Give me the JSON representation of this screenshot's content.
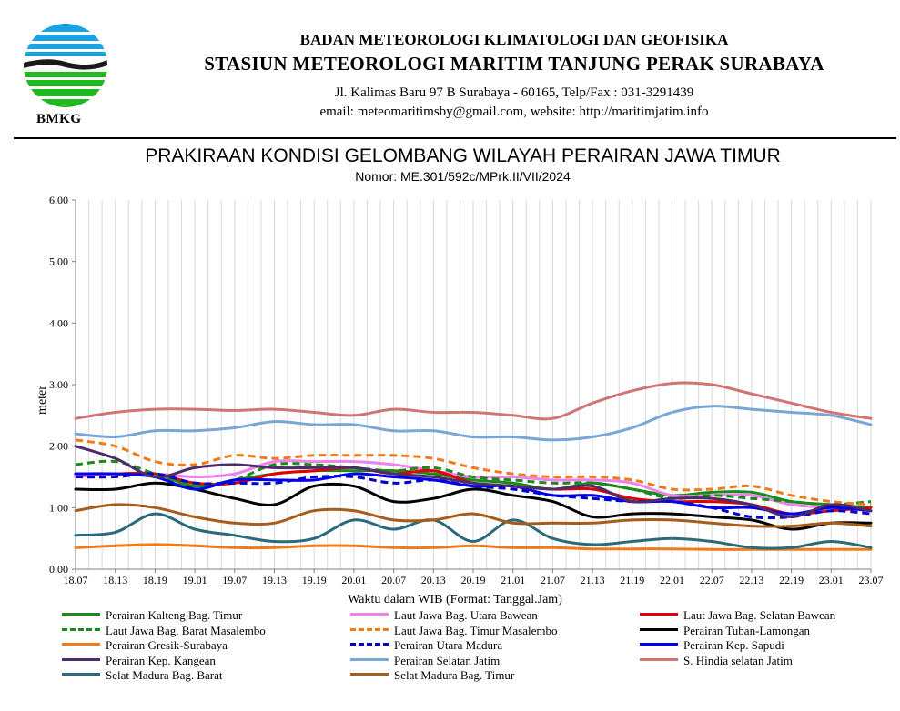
{
  "header": {
    "logo_text": "BMKG",
    "org_line1": "BADAN METEOROLOGI KLIMATOLOGI DAN GEOFISIKA",
    "org_line2": "STASIUN METEOROLOGI MARITIM TANJUNG PERAK SURABAYA",
    "address": "Jl. Kalimas Baru 97 B Surabaya - 60165, Telp/Fax : 031-3291439",
    "contact": "email: meteomaritimsby@gmail.com, website: http://maritimjatim.info"
  },
  "chart_data": {
    "type": "line",
    "title": "PRAKIRAAN KONDISI GELOMBANG WILAYAH PERAIRAN JAWA TIMUR",
    "subtitle": "Nomor: ME.301/592c/MPrk.II/VII/2024",
    "xlabel": "Waktu dalam WIB (Format: Tanggal.Jam)",
    "ylabel": "meter",
    "ylim": [
      0,
      6
    ],
    "yticks": [
      "0.00",
      "1.00",
      "2.00",
      "3.00",
      "4.00",
      "5.00",
      "6.00"
    ],
    "grid": "vertical",
    "legend_position": "bottom",
    "categories": [
      "18.07",
      "18.13",
      "18.19",
      "19.01",
      "19.07",
      "19.13",
      "19.19",
      "20.01",
      "20.07",
      "20.13",
      "20.19",
      "21.01",
      "21.07",
      "21.13",
      "21.19",
      "22.01",
      "22.07",
      "22.13",
      "22.19",
      "23.01",
      "23.07"
    ],
    "series": [
      {
        "name": "Perairan Kalteng Bag. Timur",
        "color": "#1a8a1a",
        "dash": false,
        "values": [
          1.55,
          1.55,
          1.55,
          1.35,
          1.45,
          1.55,
          1.6,
          1.6,
          1.6,
          1.55,
          1.45,
          1.4,
          1.3,
          1.4,
          1.3,
          1.2,
          1.25,
          1.25,
          1.1,
          1.05,
          1.0
        ]
      },
      {
        "name": "Laut Jawa Bag. Utara Bawean",
        "color": "#ee82ee",
        "dash": false,
        "values": [
          1.5,
          1.55,
          1.55,
          1.5,
          1.55,
          1.75,
          1.75,
          1.75,
          1.7,
          1.6,
          1.5,
          1.5,
          1.45,
          1.45,
          1.4,
          1.2,
          1.2,
          1.2,
          1.05,
          1.0,
          0.95
        ]
      },
      {
        "name": "Laut Jawa Bag. Selatan Bawean",
        "color": "#e00000",
        "dash": false,
        "values": [
          1.55,
          1.55,
          1.55,
          1.4,
          1.4,
          1.55,
          1.6,
          1.65,
          1.55,
          1.6,
          1.4,
          1.35,
          1.3,
          1.3,
          1.15,
          1.1,
          1.1,
          1.05,
          0.9,
          0.95,
          1.0
        ]
      },
      {
        "name": "Laut Jawa Bag. Barat Masalembo",
        "color": "#1a8a1a",
        "dash": true,
        "values": [
          1.7,
          1.75,
          1.55,
          1.35,
          1.45,
          1.7,
          1.7,
          1.65,
          1.6,
          1.65,
          1.5,
          1.45,
          1.4,
          1.4,
          1.3,
          1.15,
          1.2,
          1.15,
          1.1,
          1.05,
          1.1
        ]
      },
      {
        "name": "Laut Jawa Bag. Timur Masalembo",
        "color": "#f07b1c",
        "dash": true,
        "values": [
          2.1,
          2.0,
          1.75,
          1.7,
          1.85,
          1.8,
          1.85,
          1.85,
          1.85,
          1.8,
          1.65,
          1.55,
          1.5,
          1.5,
          1.45,
          1.3,
          1.3,
          1.35,
          1.2,
          1.1,
          1.05
        ]
      },
      {
        "name": "Perairan Tuban-Lamongan",
        "color": "#000000",
        "dash": false,
        "values": [
          1.3,
          1.3,
          1.4,
          1.3,
          1.15,
          1.05,
          1.35,
          1.35,
          1.1,
          1.15,
          1.3,
          1.2,
          1.1,
          0.85,
          0.9,
          0.9,
          0.85,
          0.8,
          0.65,
          0.75,
          0.75
        ]
      },
      {
        "name": "Perairan Gresik-Surabaya",
        "color": "#f07b1c",
        "dash": false,
        "values": [
          0.35,
          0.38,
          0.4,
          0.38,
          0.35,
          0.35,
          0.38,
          0.38,
          0.35,
          0.35,
          0.38,
          0.35,
          0.35,
          0.33,
          0.33,
          0.33,
          0.32,
          0.32,
          0.32,
          0.32,
          0.32
        ]
      },
      {
        "name": "Perairan Utara Madura",
        "color": "#0000cc",
        "dash": true,
        "values": [
          1.5,
          1.5,
          1.55,
          1.4,
          1.4,
          1.4,
          1.5,
          1.5,
          1.4,
          1.45,
          1.35,
          1.3,
          1.2,
          1.15,
          1.1,
          1.1,
          1.0,
          0.85,
          0.85,
          0.95,
          0.9
        ]
      },
      {
        "name": "Perairan Kep. Sapudi",
        "color": "#0000ee",
        "dash": false,
        "values": [
          1.55,
          1.55,
          1.5,
          1.3,
          1.45,
          1.45,
          1.45,
          1.55,
          1.5,
          1.45,
          1.35,
          1.35,
          1.2,
          1.2,
          1.1,
          1.1,
          1.0,
          1.0,
          0.9,
          1.0,
          0.95
        ]
      },
      {
        "name": "Perairan Kep. Kangean",
        "color": "#4b2d6b",
        "dash": false,
        "values": [
          2.0,
          1.8,
          1.5,
          1.65,
          1.7,
          1.65,
          1.65,
          1.65,
          1.55,
          1.5,
          1.4,
          1.35,
          1.3,
          1.35,
          1.1,
          1.15,
          1.15,
          1.05,
          0.85,
          1.05,
          0.95
        ]
      },
      {
        "name": "Perairan Selatan Jatim",
        "color": "#7aa6d6",
        "dash": false,
        "values": [
          2.2,
          2.15,
          2.25,
          2.25,
          2.3,
          2.4,
          2.35,
          2.35,
          2.25,
          2.25,
          2.15,
          2.15,
          2.1,
          2.15,
          2.3,
          2.55,
          2.65,
          2.6,
          2.55,
          2.5,
          2.35
        ]
      },
      {
        "name": "S. Hindia selatan Jatim",
        "color": "#d07474",
        "dash": false,
        "values": [
          2.45,
          2.55,
          2.6,
          2.6,
          2.58,
          2.6,
          2.55,
          2.5,
          2.6,
          2.55,
          2.55,
          2.5,
          2.45,
          2.7,
          2.9,
          3.02,
          3.0,
          2.85,
          2.7,
          2.55,
          2.45
        ]
      },
      {
        "name": "Selat Madura Bag. Barat",
        "color": "#2a6b7b",
        "dash": false,
        "values": [
          0.55,
          0.6,
          0.9,
          0.65,
          0.55,
          0.45,
          0.5,
          0.8,
          0.65,
          0.8,
          0.45,
          0.8,
          0.5,
          0.4,
          0.45,
          0.5,
          0.45,
          0.35,
          0.35,
          0.45,
          0.35
        ]
      },
      {
        "name": "Selat Madura Bag. Timur",
        "color": "#a65c1a",
        "dash": false,
        "values": [
          0.95,
          1.05,
          1.0,
          0.85,
          0.75,
          0.75,
          0.95,
          0.95,
          0.8,
          0.8,
          0.9,
          0.75,
          0.75,
          0.75,
          0.8,
          0.8,
          0.75,
          0.7,
          0.7,
          0.75,
          0.7
        ]
      }
    ]
  }
}
